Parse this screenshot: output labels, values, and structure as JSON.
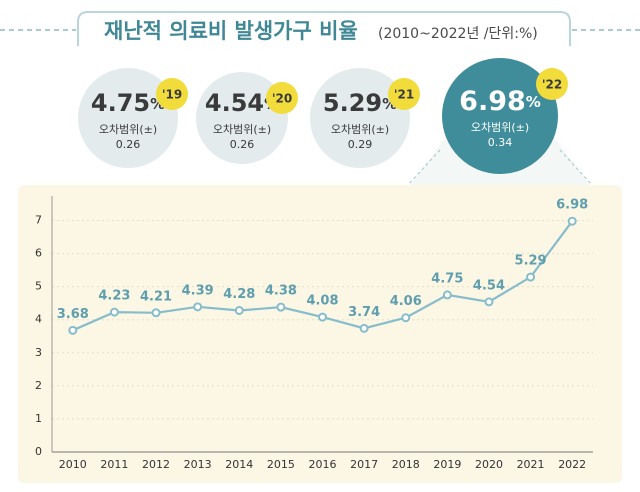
{
  "header": {
    "title": "재난적 의료비 발생가구 비율",
    "subtitle": "(2010~2022년 /단위:%)"
  },
  "highlights": [
    {
      "value": 4.75,
      "unit": "%",
      "year": "'19",
      "error_label": "오차범위(±)",
      "error": 0.26
    },
    {
      "value": 4.54,
      "unit": "%",
      "year": "'20",
      "error_label": "오차범위(±)",
      "error": 0.26
    },
    {
      "value": 5.29,
      "unit": "%",
      "year": "'21",
      "error_label": "오차범위(±)",
      "error": 0.29
    },
    {
      "value": 6.98,
      "unit": "%",
      "year": "'22",
      "error_label": "오차범위(±)",
      "error": 0.34
    }
  ],
  "chart_data": {
    "type": "line",
    "categories": [
      "2010",
      "2011",
      "2012",
      "2013",
      "2014",
      "2015",
      "2016",
      "2017",
      "2018",
      "2019",
      "2020",
      "2021",
      "2022"
    ],
    "values": [
      3.68,
      4.23,
      4.21,
      4.39,
      4.28,
      4.38,
      4.08,
      3.74,
      4.06,
      4.75,
      4.54,
      5.29,
      6.98
    ],
    "color": "#86bccb",
    "ylim": [
      0,
      7.5
    ],
    "yticks": [
      0,
      1,
      2,
      3,
      4,
      5,
      6,
      7
    ],
    "grid": true
  }
}
